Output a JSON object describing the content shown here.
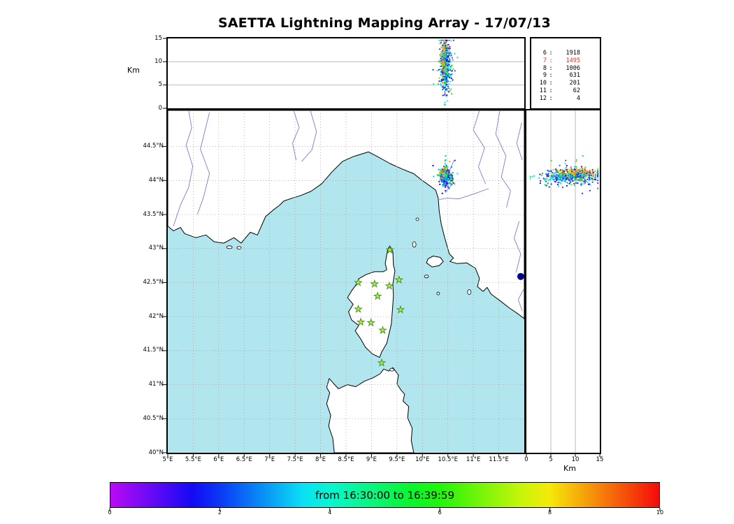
{
  "title": "SAETTA Lightning Mapping Array - 17/07/13",
  "legend": {
    "rows": [
      {
        "n": "6",
        "count": "1918",
        "highlight": false
      },
      {
        "n": "7",
        "count": "1495",
        "highlight": true
      },
      {
        "n": "8",
        "count": "1006",
        "highlight": false
      },
      {
        "n": "9",
        "count": "631",
        "highlight": false
      },
      {
        "n": "10",
        "count": "201",
        "highlight": false
      },
      {
        "n": "11",
        "count": "62",
        "highlight": false
      },
      {
        "n": "12",
        "count": "4",
        "highlight": false
      }
    ],
    "highlight_color": "#e8302a"
  },
  "axes": {
    "alt_unit": "Km",
    "alt_tick_labels": [
      "0",
      "5",
      "10",
      "15"
    ],
    "alt_tick_values": [
      0,
      5,
      10,
      15
    ],
    "alt_grid_values": [
      5,
      10
    ],
    "lon_tick_labels": [
      "5°E",
      "5.5°E",
      "6°E",
      "6.5°E",
      "7°E",
      "7.5°E",
      "8°E",
      "8.5°E",
      "9°E",
      "9.5°E",
      "10°E",
      "10.5°E",
      "11°E",
      "11.5°E"
    ],
    "lon_tick_values": [
      5,
      5.5,
      6,
      6.5,
      7,
      7.5,
      8,
      8.5,
      9,
      9.5,
      10,
      10.5,
      11,
      11.5
    ],
    "lat_tick_labels": [
      "44.5°N",
      "44°N",
      "43.5°N",
      "43°N",
      "42.5°N",
      "42°N",
      "41.5°N",
      "41°N",
      "40.5°N",
      "40°N"
    ],
    "lat_tick_values": [
      44.5,
      44,
      43.5,
      43,
      42.5,
      42,
      41.5,
      41,
      40.5,
      40
    ],
    "lon_grid_values": [
      5.5,
      6,
      6.5,
      7,
      7.5,
      8,
      8.5,
      9,
      9.5,
      10,
      10.5,
      11,
      11.5
    ],
    "lat_grid_values": [
      40.5,
      41,
      41.5,
      42,
      42.5,
      43,
      43.5,
      44,
      44.5
    ]
  },
  "colorbar": {
    "label": "from 16:30:00 to 16:39:59",
    "tick_labels": [
      "0",
      "2",
      "4",
      "6",
      "8",
      "10"
    ],
    "tick_values": [
      0,
      2,
      4,
      6,
      8,
      10
    ],
    "min": 0,
    "max": 10
  },
  "colors": {
    "sea": "#b2e6ef",
    "land": "#ffffff",
    "coast": "#000000",
    "river": "#7b7bd6",
    "grid": "#999999",
    "panel_grid": "#bbbbbb",
    "lake": "#00008b",
    "star_fill": "#b0f040",
    "star_stroke": "#3f8f1f",
    "time_hue_start": 285,
    "time_hue_end": 0
  },
  "chart_data": {
    "type": "scatter",
    "subtype": "lightning-mapping-array",
    "title": "SAETTA Lightning Mapping Array - 17/07/13",
    "date": "17/07/13",
    "time_window": {
      "start": "16:30:00",
      "end": "16:39:59",
      "colorbar_units": "minutes",
      "colorbar_range": [
        0,
        10
      ]
    },
    "panels": [
      {
        "name": "altitude_vs_longitude",
        "x": "longitude_E",
        "xlim": [
          5,
          12
        ],
        "y": "altitude_km",
        "ylim": [
          0,
          15
        ],
        "grid": [
          5,
          10
        ]
      },
      {
        "name": "map_latitude_vs_longitude",
        "x": "longitude_E",
        "xlim": [
          5,
          12
        ],
        "y": "latitude_N",
        "ylim": [
          40.0,
          45.03
        ]
      },
      {
        "name": "altitude_vs_latitude",
        "x": "altitude_km",
        "xlim": [
          0,
          15
        ],
        "y": "latitude_N",
        "ylim": [
          40.0,
          45.03
        ],
        "grid": [
          5,
          10
        ]
      }
    ],
    "source_counts_by_min_stations": {
      "6": 1918,
      "7": 1495,
      "8": 1006,
      "9": 631,
      "10": 201,
      "11": 62,
      "12": 4
    },
    "stations_lon_lat": [
      [
        9.36,
        42.98
      ],
      [
        8.74,
        42.5
      ],
      [
        9.06,
        42.48
      ],
      [
        9.35,
        42.45
      ],
      [
        9.54,
        42.54
      ],
      [
        9.12,
        42.3
      ],
      [
        8.74,
        42.11
      ],
      [
        9.57,
        42.1
      ],
      [
        8.79,
        41.92
      ],
      [
        8.99,
        41.91
      ],
      [
        9.22,
        41.8
      ],
      [
        9.2,
        41.32
      ]
    ],
    "flash": {
      "n_points": 620,
      "seed": 20130717,
      "lon_mu": 10.455,
      "lon_sigma": 0.05,
      "lat_mu": 44.06,
      "lat_sigma": 0.06,
      "alt_mu_km": 9.2,
      "alt_sigma_km": 2.9,
      "alt_min_km": 0.8,
      "alt_max_km": 14.6,
      "time_groups": [
        {
          "weight": 0.3,
          "t_mu": 1.9,
          "t_sigma": 0.6
        },
        {
          "weight": 0.24,
          "t_mu": 3.5,
          "t_sigma": 0.6
        },
        {
          "weight": 0.12,
          "t_mu": 5.9,
          "t_sigma": 0.6
        },
        {
          "weight": 0.28,
          "t_mu": 8.6,
          "t_sigma": 0.5
        },
        {
          "weight": 0.06,
          "t_mu": 0.4,
          "t_sigma": 0.3
        }
      ],
      "late_group_offset": {
        "dlon": -0.035,
        "dlat": 0.055,
        "alt_mu": 10.3,
        "alt_sigma": 2.0
      }
    }
  },
  "geo": {
    "mainland": [
      [
        5.0,
        43.33
      ],
      [
        5.11,
        43.26
      ],
      [
        5.25,
        43.31
      ],
      [
        5.33,
        43.22
      ],
      [
        5.55,
        43.16
      ],
      [
        5.75,
        43.2
      ],
      [
        5.91,
        43.1
      ],
      [
        6.1,
        43.08
      ],
      [
        6.3,
        43.16
      ],
      [
        6.44,
        43.08
      ],
      [
        6.62,
        43.24
      ],
      [
        6.76,
        43.2
      ],
      [
        6.92,
        43.47
      ],
      [
        7.06,
        43.56
      ],
      [
        7.2,
        43.64
      ],
      [
        7.28,
        43.7
      ],
      [
        7.44,
        43.74
      ],
      [
        7.61,
        43.78
      ],
      [
        7.81,
        43.84
      ],
      [
        8.02,
        43.95
      ],
      [
        8.23,
        44.13
      ],
      [
        8.43,
        44.28
      ],
      [
        8.64,
        44.35
      ],
      [
        8.94,
        44.42
      ],
      [
        9.12,
        44.35
      ],
      [
        9.36,
        44.25
      ],
      [
        9.6,
        44.17
      ],
      [
        9.83,
        44.1
      ],
      [
        9.98,
        44.01
      ],
      [
        10.13,
        43.93
      ],
      [
        10.26,
        43.86
      ],
      [
        10.31,
        43.74
      ],
      [
        10.33,
        43.55
      ],
      [
        10.37,
        43.36
      ],
      [
        10.43,
        43.18
      ],
      [
        10.49,
        43.02
      ],
      [
        10.53,
        42.92
      ],
      [
        10.61,
        42.86
      ],
      [
        10.54,
        42.81
      ],
      [
        10.68,
        42.78
      ],
      [
        10.87,
        42.79
      ],
      [
        11.04,
        42.71
      ],
      [
        11.12,
        42.56
      ],
      [
        11.08,
        42.44
      ],
      [
        11.19,
        42.37
      ],
      [
        11.27,
        42.43
      ],
      [
        11.35,
        42.33
      ],
      [
        11.53,
        42.23
      ],
      [
        11.72,
        42.12
      ],
      [
        11.86,
        42.05
      ],
      [
        12.0,
        41.97
      ],
      [
        12.0,
        45.03
      ],
      [
        5.0,
        45.03
      ]
    ],
    "corsica": [
      [
        9.36,
        43.04
      ],
      [
        9.42,
        42.95
      ],
      [
        9.43,
        42.76
      ],
      [
        9.46,
        42.67
      ],
      [
        9.42,
        42.48
      ],
      [
        9.43,
        42.3
      ],
      [
        9.41,
        42.09
      ],
      [
        9.39,
        41.89
      ],
      [
        9.3,
        41.61
      ],
      [
        9.2,
        41.48
      ],
      [
        9.16,
        41.4
      ],
      [
        9.02,
        41.45
      ],
      [
        8.88,
        41.55
      ],
      [
        8.79,
        41.67
      ],
      [
        8.68,
        41.79
      ],
      [
        8.75,
        41.87
      ],
      [
        8.61,
        41.95
      ],
      [
        8.55,
        42.07
      ],
      [
        8.64,
        42.18
      ],
      [
        8.53,
        42.28
      ],
      [
        8.61,
        42.38
      ],
      [
        8.69,
        42.46
      ],
      [
        8.76,
        42.56
      ],
      [
        8.9,
        42.62
      ],
      [
        9.06,
        42.66
      ],
      [
        9.23,
        42.66
      ],
      [
        9.3,
        42.69
      ],
      [
        9.27,
        42.78
      ],
      [
        9.3,
        42.91
      ],
      [
        9.32,
        42.99
      ]
    ],
    "sardinia": [
      [
        8.27,
        40.0
      ],
      [
        8.24,
        40.21
      ],
      [
        8.16,
        40.39
      ],
      [
        8.2,
        40.55
      ],
      [
        8.12,
        40.72
      ],
      [
        8.18,
        40.88
      ],
      [
        8.12,
        40.96
      ],
      [
        8.17,
        41.09
      ],
      [
        8.24,
        41.03
      ],
      [
        8.35,
        40.94
      ],
      [
        8.53,
        41.0
      ],
      [
        8.69,
        40.97
      ],
      [
        8.86,
        41.05
      ],
      [
        9.03,
        41.1
      ],
      [
        9.17,
        41.16
      ],
      [
        9.24,
        41.23
      ],
      [
        9.34,
        41.2
      ],
      [
        9.42,
        41.25
      ],
      [
        9.53,
        41.14
      ],
      [
        9.5,
        41.01
      ],
      [
        9.58,
        40.92
      ],
      [
        9.65,
        40.86
      ],
      [
        9.62,
        40.76
      ],
      [
        9.73,
        40.68
      ],
      [
        9.71,
        40.51
      ],
      [
        9.8,
        40.36
      ],
      [
        9.78,
        40.18
      ],
      [
        9.83,
        40.0
      ]
    ],
    "elba": [
      [
        10.11,
        42.85
      ],
      [
        10.21,
        42.89
      ],
      [
        10.35,
        42.87
      ],
      [
        10.41,
        42.81
      ],
      [
        10.33,
        42.75
      ],
      [
        10.19,
        42.73
      ],
      [
        10.08,
        42.79
      ]
    ],
    "islets": [
      {
        "lon": 9.84,
        "lat": 43.06,
        "rx": 2.5,
        "ry": 4
      },
      {
        "lon": 9.9,
        "lat": 43.43,
        "rx": 2,
        "ry": 2
      },
      {
        "lon": 10.08,
        "lat": 42.59,
        "rx": 3,
        "ry": 2
      },
      {
        "lon": 10.31,
        "lat": 42.34,
        "rx": 2,
        "ry": 2
      },
      {
        "lon": 10.92,
        "lat": 42.36,
        "rx": 2.5,
        "ry": 3.5
      },
      {
        "lon": 6.21,
        "lat": 43.02,
        "rx": 4,
        "ry": 2
      },
      {
        "lon": 6.4,
        "lat": 43.01,
        "rx": 3,
        "ry": 2
      },
      {
        "lon": 9.4,
        "lat": 41.22,
        "rx": 3,
        "ry": 2
      }
    ],
    "lake": {
      "lon": 11.93,
      "lat": 42.59,
      "r": 5
    },
    "rivers": [
      [
        [
          5.41,
          45.03
        ],
        [
          5.47,
          44.77
        ],
        [
          5.36,
          44.52
        ],
        [
          5.49,
          44.21
        ],
        [
          5.41,
          43.9
        ],
        [
          5.25,
          43.64
        ],
        [
          5.16,
          43.44
        ],
        [
          5.11,
          43.33
        ]
      ],
      [
        [
          5.82,
          45.0
        ],
        [
          5.64,
          44.46
        ],
        [
          5.82,
          44.1
        ],
        [
          5.7,
          43.75
        ],
        [
          5.58,
          43.5
        ]
      ],
      [
        [
          7.47,
          45.03
        ],
        [
          7.58,
          44.78
        ],
        [
          7.45,
          44.55
        ],
        [
          7.52,
          44.3
        ]
      ],
      [
        [
          7.8,
          45.03
        ],
        [
          7.92,
          44.72
        ],
        [
          7.83,
          44.45
        ],
        [
          7.63,
          44.28
        ]
      ],
      [
        [
          11.12,
          45.03
        ],
        [
          11.0,
          44.74
        ],
        [
          11.22,
          44.48
        ],
        [
          11.1,
          44.2
        ],
        [
          11.24,
          43.95
        ]
      ],
      [
        [
          11.52,
          45.03
        ],
        [
          11.44,
          44.68
        ],
        [
          11.64,
          44.36
        ],
        [
          11.55,
          44.05
        ],
        [
          11.73,
          43.85
        ],
        [
          11.65,
          43.6
        ]
      ],
      [
        [
          11.95,
          44.85
        ],
        [
          11.85,
          44.55
        ],
        [
          11.96,
          44.3
        ]
      ],
      [
        [
          11.3,
          43.88
        ],
        [
          11.0,
          43.8
        ],
        [
          10.72,
          43.73
        ],
        [
          10.48,
          43.74
        ],
        [
          10.33,
          43.72
        ]
      ],
      [
        [
          10.62,
          44.3
        ],
        [
          10.52,
          44.12
        ],
        [
          10.6,
          43.97
        ],
        [
          10.45,
          43.82
        ]
      ],
      [
        [
          11.9,
          43.4
        ],
        [
          11.8,
          43.15
        ],
        [
          11.93,
          42.92
        ],
        [
          11.84,
          42.65
        ]
      ],
      [
        [
          12.0,
          42.42
        ],
        [
          11.88,
          42.25
        ],
        [
          11.96,
          42.08
        ]
      ]
    ]
  }
}
